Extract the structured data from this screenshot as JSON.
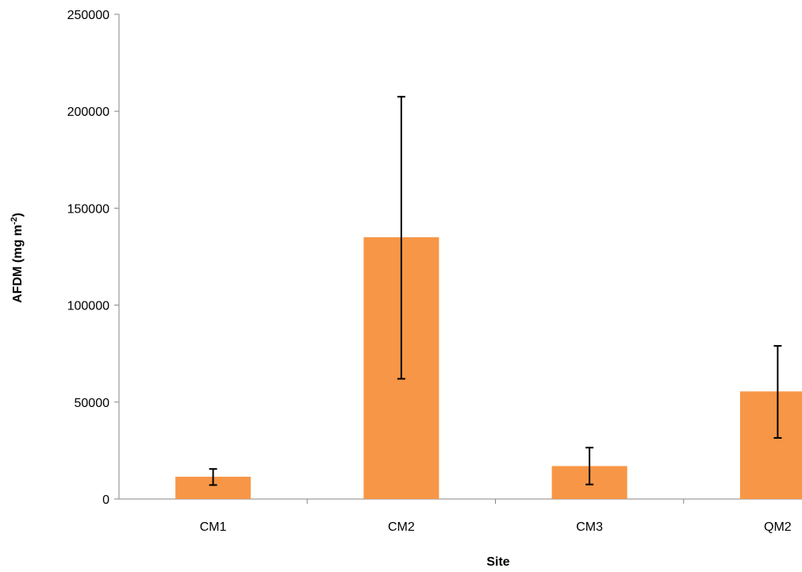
{
  "chart_data": {
    "type": "bar",
    "categories": [
      "CM1",
      "CM2",
      "CM3",
      "QM2"
    ],
    "values": [
      11500,
      135000,
      17000,
      55500
    ],
    "error_bars": {
      "lower": [
        7200,
        62000,
        7500,
        31500
      ],
      "upper": [
        15500,
        207500,
        26500,
        79000
      ]
    },
    "ylim": [
      0,
      250000
    ],
    "yticks": [
      "0",
      "50000",
      "100000",
      "150000",
      "200000",
      "250000"
    ],
    "ytick_values": [
      0,
      50000,
      100000,
      150000,
      200000,
      250000
    ],
    "xlabel": "Site",
    "ylabel_main": "AFDM (mg m",
    "ylabel_sup": "-2",
    "ylabel_close": ")",
    "grid": false,
    "legend": "none",
    "colors": {
      "bar": "#f79646",
      "error": "#000000",
      "axis": "#868686"
    }
  }
}
